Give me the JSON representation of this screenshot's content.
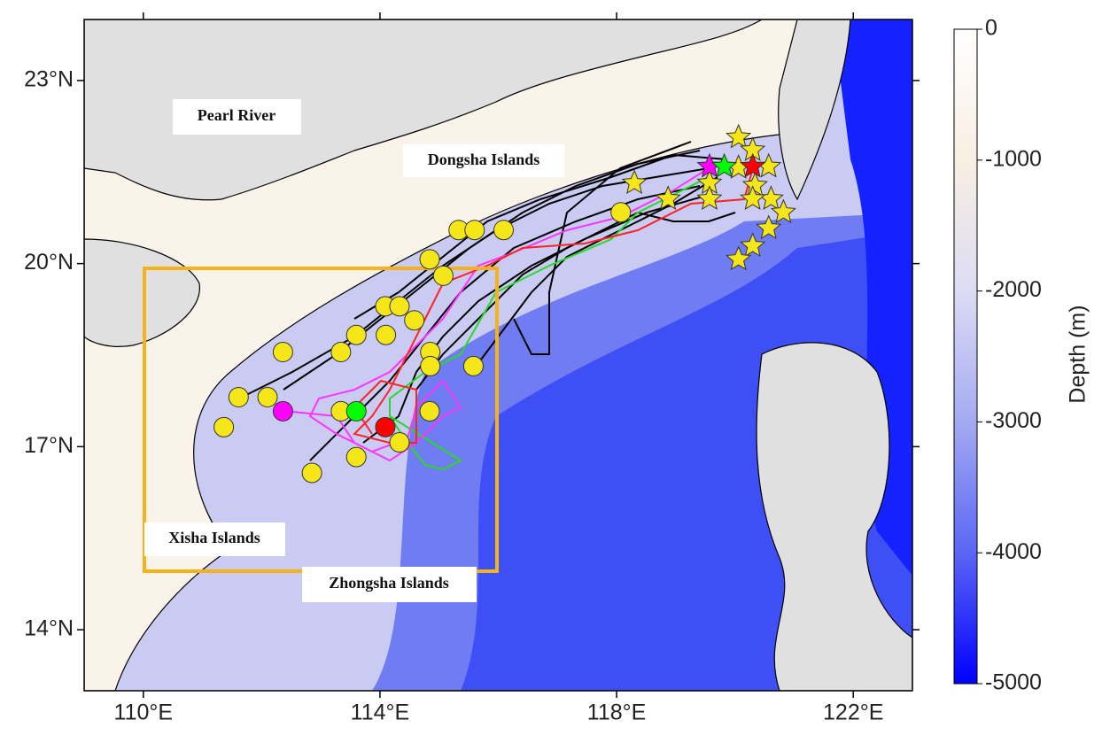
{
  "map": {
    "xlim": [
      109,
      123
    ],
    "ylim": [
      13,
      24
    ],
    "xticks": [
      {
        "value": 110,
        "label": "110°E"
      },
      {
        "value": 114,
        "label": "114°E"
      },
      {
        "value": 118,
        "label": "118°E"
      },
      {
        "value": 122,
        "label": "122°E"
      }
    ],
    "yticks": [
      {
        "value": 14,
        "label": "14°N"
      },
      {
        "value": 17,
        "label": "17°N"
      },
      {
        "value": 20,
        "label": "20°N"
      },
      {
        "value": 23,
        "label": "23°N"
      }
    ],
    "labels": [
      "Pearl River",
      "Dongsha Islands",
      "Xisha Islands",
      "Zhongsha Islands"
    ],
    "points": [
      {
        "shape": "circle",
        "color": "#f5e61a",
        "lon": [
          115.33,
          115.6,
          116.09,
          114.84,
          115.07,
          114.09,
          114.33,
          114.58,
          113.6,
          114.1,
          112.36,
          113.34,
          114.85,
          115.58,
          114.85,
          111.61,
          112.1,
          113.34,
          114.84,
          111.36,
          114.33,
          113.6,
          112.85,
          118.07
        ],
        "lat": [
          20.55,
          20.55,
          20.55,
          20.07,
          19.8,
          19.3,
          19.3,
          19.07,
          18.83,
          18.83,
          18.55,
          18.55,
          18.55,
          18.32,
          18.32,
          17.81,
          17.81,
          17.58,
          17.58,
          17.32,
          17.07,
          16.83,
          16.57,
          20.84
        ]
      },
      {
        "shape": "circle",
        "color": "#ff00ff",
        "lon": [
          112.36
        ],
        "lat": [
          17.58
        ]
      },
      {
        "shape": "circle",
        "color": "#00ff00",
        "lon": [
          113.6
        ],
        "lat": [
          17.58
        ]
      },
      {
        "shape": "circle",
        "color": "#ff0000",
        "lon": [
          114.09
        ],
        "lat": [
          17.32
        ]
      },
      {
        "shape": "star",
        "color": "#f5e61a",
        "lon": [
          120.06,
          120.3,
          120.57,
          118.3,
          120.06,
          118.87,
          119.57,
          119.57,
          120.34,
          120.61,
          120.82,
          120.57,
          120.3,
          120.06,
          120.3
        ],
        "lat": [
          22.07,
          21.86,
          21.59,
          21.32,
          21.57,
          21.06,
          21.32,
          21.06,
          21.28,
          21.06,
          20.84,
          20.58,
          20.29,
          20.07,
          21.06
        ]
      },
      {
        "shape": "star",
        "color": "#ff00ff",
        "lon": [
          119.57
        ],
        "lat": [
          21.59
        ]
      },
      {
        "shape": "star",
        "color": "#00ff00",
        "lon": [
          119.82
        ],
        "lat": [
          21.59
        ]
      },
      {
        "shape": "star",
        "color": "#ff0000",
        "lon": [
          120.3
        ],
        "lat": [
          21.59
        ]
      }
    ],
    "colorbar": {
      "label": "Depth (m)",
      "lim": [
        -5000,
        0
      ],
      "ticks": [
        0,
        -1000,
        -2000,
        -3000,
        -4000,
        -5000
      ]
    }
  }
}
